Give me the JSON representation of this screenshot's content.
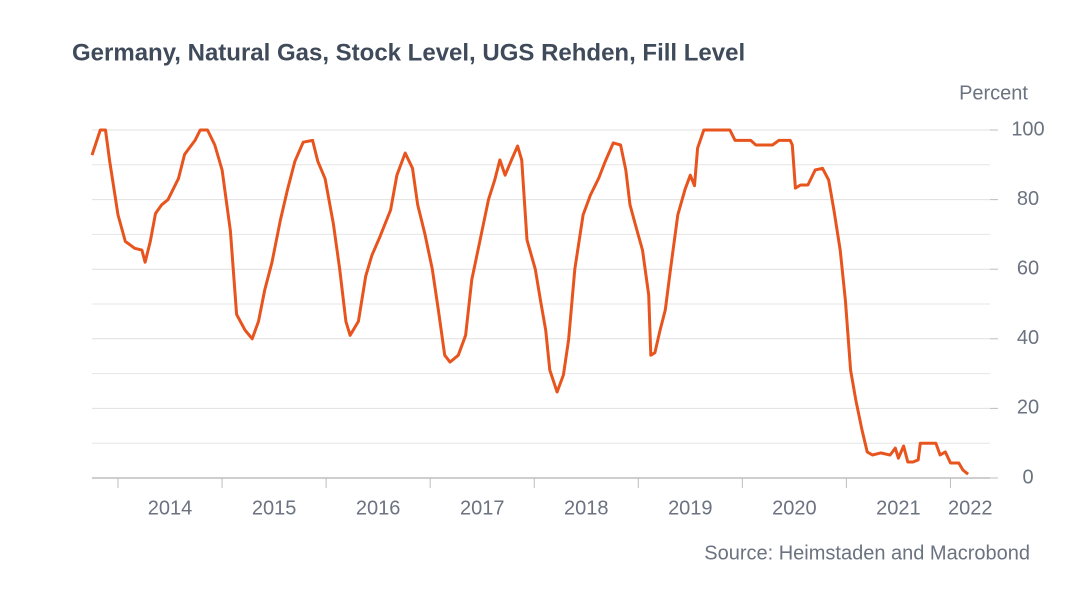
{
  "chart_data": {
    "type": "line",
    "title": "Germany, Natural Gas, Stock Level, UGS Rehden, Fill Level",
    "y_axis_label": "Percent",
    "source": "Source: Heimstaden and Macrobond",
    "xlim": [
      2013.75,
      2022.38
    ],
    "xticks": [
      {
        "value": 2014,
        "label": "2014"
      },
      {
        "value": 2015,
        "label": "2015"
      },
      {
        "value": 2016,
        "label": "2016"
      },
      {
        "value": 2017,
        "label": "2017"
      },
      {
        "value": 2018,
        "label": "2018"
      },
      {
        "value": 2019,
        "label": "2019"
      },
      {
        "value": 2020,
        "label": "2020"
      },
      {
        "value": 2021,
        "label": "2021"
      },
      {
        "value": 2022,
        "label": "2022"
      }
    ],
    "ylim": [
      0,
      100
    ],
    "yticks": [
      0,
      20,
      40,
      60,
      80,
      100
    ],
    "minor_yticks": [
      10,
      30,
      50,
      70,
      90
    ],
    "y_axis_side": "right",
    "grid": true,
    "series": [
      {
        "name": "Fill Level",
        "color": "#e8541e",
        "x": [
          2013.75,
          2013.83,
          2013.88,
          2013.92,
          2014.0,
          2014.07,
          2014.16,
          2014.23,
          2014.26,
          2014.31,
          2014.36,
          2014.42,
          2014.48,
          2014.58,
          2014.64,
          2014.74,
          2014.79,
          2014.86,
          2014.93,
          2015.0,
          2015.08,
          2015.14,
          2015.22,
          2015.29,
          2015.35,
          2015.41,
          2015.48,
          2015.56,
          2015.63,
          2015.7,
          2015.78,
          2015.87,
          2015.92,
          2015.99,
          2016.07,
          2016.13,
          2016.19,
          2016.23,
          2016.31,
          2016.38,
          2016.44,
          2016.52,
          2016.62,
          2016.68,
          2016.76,
          2016.83,
          2016.88,
          2016.95,
          2017.02,
          2017.08,
          2017.14,
          2017.19,
          2017.27,
          2017.34,
          2017.4,
          2017.48,
          2017.56,
          2017.62,
          2017.67,
          2017.72,
          2017.79,
          2017.84,
          2017.88,
          2017.93,
          2018.01,
          2018.06,
          2018.11,
          2018.15,
          2018.22,
          2018.28,
          2018.33,
          2018.39,
          2018.47,
          2018.54,
          2018.62,
          2018.68,
          2018.76,
          2018.83,
          2018.88,
          2018.92,
          2018.97,
          2019.04,
          2019.1,
          2019.12,
          2019.16,
          2019.21,
          2019.26,
          2019.31,
          2019.38,
          2019.45,
          2019.5,
          2019.54,
          2019.57,
          2019.63,
          2019.88,
          2019.93,
          2020.08,
          2020.13,
          2020.29,
          2020.35,
          2020.46,
          2020.48,
          2020.51,
          2020.56,
          2020.63,
          2020.7,
          2020.77,
          2020.83,
          2020.88,
          2020.94,
          2020.99,
          2021.04,
          2021.09,
          2021.15,
          2021.2,
          2021.25,
          2021.33,
          2021.42,
          2021.47,
          2021.5,
          2021.55,
          2021.59,
          2021.64,
          2021.69,
          2021.71,
          2021.86,
          2021.9,
          2021.95,
          2022.0,
          2022.08,
          2022.12,
          2022.17
        ],
        "values": [
          92.8,
          100,
          100,
          91,
          75.6,
          68,
          66,
          65.5,
          62,
          68,
          76,
          78.5,
          80,
          86,
          93,
          97,
          100,
          100,
          95.7,
          88.5,
          71,
          47,
          42.5,
          40,
          45,
          54,
          62,
          74,
          83,
          91,
          96.5,
          97,
          91,
          86,
          73,
          60,
          45,
          41,
          45,
          58,
          64,
          69.5,
          77,
          87,
          93.4,
          89,
          78.5,
          70,
          60,
          48,
          35.3,
          33.3,
          35.3,
          41,
          57,
          68.4,
          80,
          85.6,
          91.4,
          87,
          92,
          95.4,
          91.4,
          68.4,
          60,
          51,
          42.5,
          31,
          24.7,
          29.6,
          39.7,
          60,
          75.6,
          81.3,
          86.2,
          90.8,
          96.3,
          95.7,
          88.5,
          78.5,
          73,
          65.5,
          52.6,
          35.3,
          36,
          42.5,
          48.3,
          60,
          75.6,
          83,
          87,
          84,
          94.8,
          100,
          100,
          97,
          97,
          95.7,
          95.7,
          97,
          97,
          95.7,
          83.3,
          84.2,
          84.2,
          88.5,
          89,
          85.6,
          77,
          65.5,
          51,
          31,
          22.4,
          13.8,
          7.5,
          6.6,
          7.2,
          6.6,
          8.6,
          5.7,
          9.2,
          4.6,
          4.6,
          5.2,
          10,
          10,
          6.6,
          7.5,
          4.3,
          4.3,
          2.3,
          1.1
        ]
      }
    ]
  }
}
